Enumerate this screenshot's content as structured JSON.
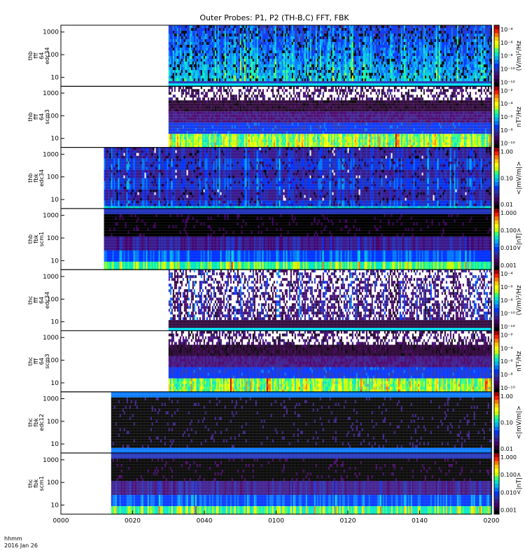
{
  "title": "Outer Probes: P1, P2 (TH-B,C) FFT, FBK",
  "time_axis": {
    "ticks": [
      "0000",
      "0020",
      "0040",
      "0100",
      "0120",
      "0140",
      "0200"
    ],
    "label_line1": "hhmm",
    "label_line2": "2016 Jan 26"
  },
  "colors": {
    "colormap": [
      "#000000",
      "#2a0035",
      "#46006a",
      "#3a1a8c",
      "#2233bb",
      "#0033ff",
      "#0077ff",
      "#00b4f0",
      "#00e6c8",
      "#3cff6e",
      "#c8ff00",
      "#ffff00",
      "#ffc800",
      "#ff7800",
      "#ff1e00",
      "#aa0000"
    ],
    "cyan_line": "#00ffff",
    "background": "#ffffff"
  },
  "chart_data": [
    {
      "type": "heatmap",
      "panel_label": [
        "thb",
        "fff",
        "64",
        "edc34"
      ],
      "yticks": [
        "10",
        "100",
        "1000"
      ],
      "cbar_ticks": [
        "10⁻⁴",
        "10⁻⁶",
        "10⁻⁸",
        "10⁻¹⁰",
        "10⁻¹²"
      ],
      "cbar_label": "(V/m)²/Hz",
      "x_start": "0030",
      "x_end": "0200",
      "texture": "fff_e"
    },
    {
      "type": "heatmap",
      "panel_label": [
        "thb",
        "fff",
        "64",
        "scm3"
      ],
      "yticks": [
        "10",
        "100",
        "1000"
      ],
      "cbar_ticks": [
        "10⁻²",
        "10⁻⁴",
        "10⁻⁶",
        "10⁻⁸",
        "10⁻¹⁰"
      ],
      "cbar_label": "nT²/Hz",
      "x_start": "0030",
      "x_end": "0200",
      "texture": "fff_b"
    },
    {
      "type": "heatmap",
      "panel_label": [
        "thb",
        "fbk",
        "edc34"
      ],
      "yticks": [
        "10",
        "100",
        "1000"
      ],
      "cbar_ticks": [
        "1.00",
        "0.10",
        "0.01"
      ],
      "cbar_label": "<|mV/m|>",
      "x_start": "0012",
      "x_end": "0200",
      "texture": "fbk_e"
    },
    {
      "type": "heatmap",
      "panel_label": [
        "thb",
        "fbk",
        "scm1"
      ],
      "yticks": [
        "10",
        "100",
        "1000"
      ],
      "cbar_ticks": [
        "1.000",
        "0.100",
        "0.010",
        "0.001"
      ],
      "cbar_label": "<|nT|>",
      "x_start": "0012",
      "x_end": "0200",
      "texture": "fbk_b"
    },
    {
      "type": "heatmap",
      "panel_label": [
        "thc",
        "fff",
        "64",
        "edc34"
      ],
      "yticks": [
        "10",
        "100",
        "1000"
      ],
      "cbar_ticks": [
        "10⁻⁴",
        "10⁻⁶",
        "10⁻⁸",
        "10⁻¹⁰",
        "10⁻¹²"
      ],
      "cbar_label": "(V/m)²/Hz",
      "x_start": "0030",
      "x_end": "0200",
      "texture": "fff_e2"
    },
    {
      "type": "heatmap",
      "panel_label": [
        "thc",
        "fff",
        "64",
        "scm3"
      ],
      "yticks": [
        "10",
        "100",
        "1000"
      ],
      "cbar_ticks": [
        "10⁻²",
        "10⁻⁴",
        "10⁻⁶",
        "10⁻⁸",
        "10⁻¹⁰"
      ],
      "cbar_label": "nT²/Hz",
      "x_start": "0030",
      "x_end": "0200",
      "texture": "fff_b"
    },
    {
      "type": "heatmap",
      "panel_label": [
        "thc",
        "fbk",
        "edc12"
      ],
      "yticks": [
        "10",
        "100",
        "1000"
      ],
      "cbar_ticks": [
        "1.00",
        "0.10",
        "0.01"
      ],
      "cbar_label": "<|mV/m|>",
      "x_start": "0014",
      "x_end": "0200",
      "texture": "fbk_e2"
    },
    {
      "type": "heatmap",
      "panel_label": [
        "thc",
        "fbk",
        "scm1"
      ],
      "yticks": [
        "10",
        "100",
        "1000"
      ],
      "cbar_ticks": [
        "1.000",
        "0.100",
        "0.010",
        "0.001"
      ],
      "cbar_label": "<|nT|>",
      "x_start": "0014",
      "x_end": "0200",
      "texture": "fbk_b"
    }
  ]
}
